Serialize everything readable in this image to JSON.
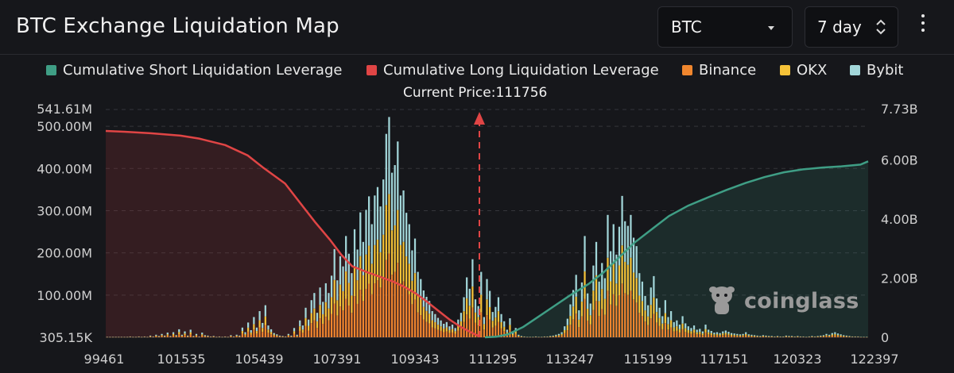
{
  "header": {
    "title": "BTC Exchange Liquidation Map",
    "coin_select": {
      "value": "BTC",
      "icon": "caret-down-icon"
    },
    "range_select": {
      "value": "7 day",
      "icon": "updown-icon"
    },
    "menu_icon": "kebab-icon"
  },
  "legend": [
    {
      "label": "Cumulative Short Liquidation Leverage",
      "color": "#3f9e85"
    },
    {
      "label": "Cumulative Long Liquidation Leverage",
      "color": "#e04545"
    },
    {
      "label": "Binance",
      "color": "#f0862e"
    },
    {
      "label": "OKX",
      "color": "#f5c238"
    },
    {
      "label": "Bybit",
      "color": "#a2d6d9"
    }
  ],
  "annotation": "Current Price:111756",
  "watermark": "coinglass",
  "chart_data": {
    "type": "bar",
    "current_price": 111756,
    "x_tick_labels": [
      "99461",
      "101535",
      "105439",
      "107391",
      "109343",
      "111295",
      "113247",
      "115199",
      "117151",
      "120323",
      "122397"
    ],
    "y_left": {
      "tick_labels": [
        "305.15K",
        "100.00M",
        "200.00M",
        "300.00M",
        "400.00M",
        "500.00M",
        "541.61M"
      ],
      "range": [
        0,
        541.61
      ],
      "unit": "M"
    },
    "y_right": {
      "tick_labels": [
        "0",
        "2.00B",
        "4.00B",
        "6.00B",
        "7.73B"
      ],
      "range": [
        0,
        7.73
      ],
      "unit": "B"
    },
    "bar_series": [
      {
        "name": "Binance",
        "color": "#f0862e"
      },
      {
        "name": "OKX",
        "color": "#f5c238"
      },
      {
        "name": "Bybit",
        "color": "#a2d6d9"
      }
    ],
    "bar_totals_M": [
      1,
      1,
      1,
      1,
      1,
      1,
      1,
      1,
      2,
      1,
      1,
      2,
      1,
      2,
      1,
      4,
      2,
      6,
      3,
      8,
      4,
      11,
      3,
      12,
      5,
      19,
      6,
      14,
      4,
      18,
      3,
      8,
      2,
      11,
      5,
      4,
      2,
      3,
      1,
      2,
      1,
      2,
      1,
      5,
      2,
      6,
      4,
      23,
      12,
      35,
      17,
      48,
      23,
      62,
      34,
      76,
      28,
      19,
      10,
      7,
      4,
      3,
      2,
      8,
      4,
      22,
      6,
      40,
      28,
      70,
      42,
      88,
      105,
      58,
      118,
      84,
      128,
      105,
      146,
      209,
      135,
      192,
      168,
      240,
      198,
      152,
      256,
      208,
      296,
      226,
      302,
      334,
      268,
      336,
      356,
      310,
      374,
      482,
      522,
      390,
      408,
      464,
      336,
      348,
      295,
      268,
      206,
      234,
      155,
      138,
      111,
      96,
      86,
      62,
      55,
      46,
      40,
      32,
      36,
      26,
      30,
      22,
      42,
      58,
      95,
      142,
      115,
      185,
      90,
      74,
      155,
      48,
      138,
      110,
      60,
      72,
      95,
      55,
      38,
      18,
      45,
      12,
      22,
      6,
      3,
      2,
      1,
      1,
      1,
      2,
      1,
      1,
      2,
      2,
      3,
      4,
      6,
      8,
      12,
      26,
      44,
      78,
      112,
      148,
      64,
      130,
      240,
      104,
      80,
      170,
      226,
      132,
      176,
      140,
      290,
      204,
      268,
      196,
      262,
      335,
      275,
      264,
      290,
      236,
      216,
      152,
      132,
      98,
      76,
      118,
      145,
      92,
      70,
      50,
      88,
      48,
      62,
      36,
      40,
      30,
      50,
      33,
      26,
      22,
      28,
      18,
      20,
      14,
      30,
      18,
      15,
      11,
      12,
      10,
      14,
      16,
      13,
      10,
      9,
      8,
      7,
      8,
      12,
      7,
      6,
      5,
      4,
      3,
      5,
      4,
      3,
      3,
      2,
      3,
      2,
      2,
      4,
      3,
      3,
      2,
      3,
      2,
      2,
      1,
      2,
      3,
      2,
      3,
      4,
      5,
      8,
      6,
      10,
      12,
      9,
      7,
      5,
      4,
      3,
      2,
      2,
      2,
      1,
      1,
      1
    ],
    "long_cumulative_B": [
      [
        0.0,
        6.98
      ],
      [
        0.05,
        6.95
      ],
      [
        0.12,
        6.9
      ],
      [
        0.2,
        6.82
      ],
      [
        0.25,
        6.72
      ],
      [
        0.32,
        6.5
      ],
      [
        0.38,
        6.15
      ],
      [
        0.42,
        5.75
      ],
      [
        0.48,
        5.2
      ],
      [
        0.52,
        4.55
      ],
      [
        0.56,
        3.9
      ],
      [
        0.6,
        3.3
      ],
      [
        0.63,
        2.8
      ],
      [
        0.66,
        2.4
      ],
      [
        0.7,
        2.2
      ],
      [
        0.74,
        2.02
      ],
      [
        0.77,
        1.88
      ],
      [
        0.8,
        1.7
      ],
      [
        0.83,
        1.48
      ],
      [
        0.86,
        1.2
      ],
      [
        0.89,
        0.9
      ],
      [
        0.92,
        0.6
      ],
      [
        0.95,
        0.35
      ],
      [
        0.98,
        0.15
      ],
      [
        1.0,
        0.03
      ]
    ],
    "short_cumulative_B": [
      [
        0.0,
        0.0
      ],
      [
        0.03,
        0.02
      ],
      [
        0.06,
        0.1
      ],
      [
        0.1,
        0.35
      ],
      [
        0.14,
        0.7
      ],
      [
        0.18,
        1.05
      ],
      [
        0.22,
        1.4
      ],
      [
        0.27,
        1.8
      ],
      [
        0.31,
        2.2
      ],
      [
        0.35,
        2.7
      ],
      [
        0.39,
        3.2
      ],
      [
        0.44,
        3.7
      ],
      [
        0.48,
        4.1
      ],
      [
        0.53,
        4.45
      ],
      [
        0.58,
        4.72
      ],
      [
        0.63,
        4.98
      ],
      [
        0.68,
        5.22
      ],
      [
        0.73,
        5.42
      ],
      [
        0.78,
        5.58
      ],
      [
        0.83,
        5.68
      ],
      [
        0.88,
        5.74
      ],
      [
        0.93,
        5.78
      ],
      [
        0.98,
        5.84
      ],
      [
        1.0,
        5.95
      ]
    ]
  }
}
